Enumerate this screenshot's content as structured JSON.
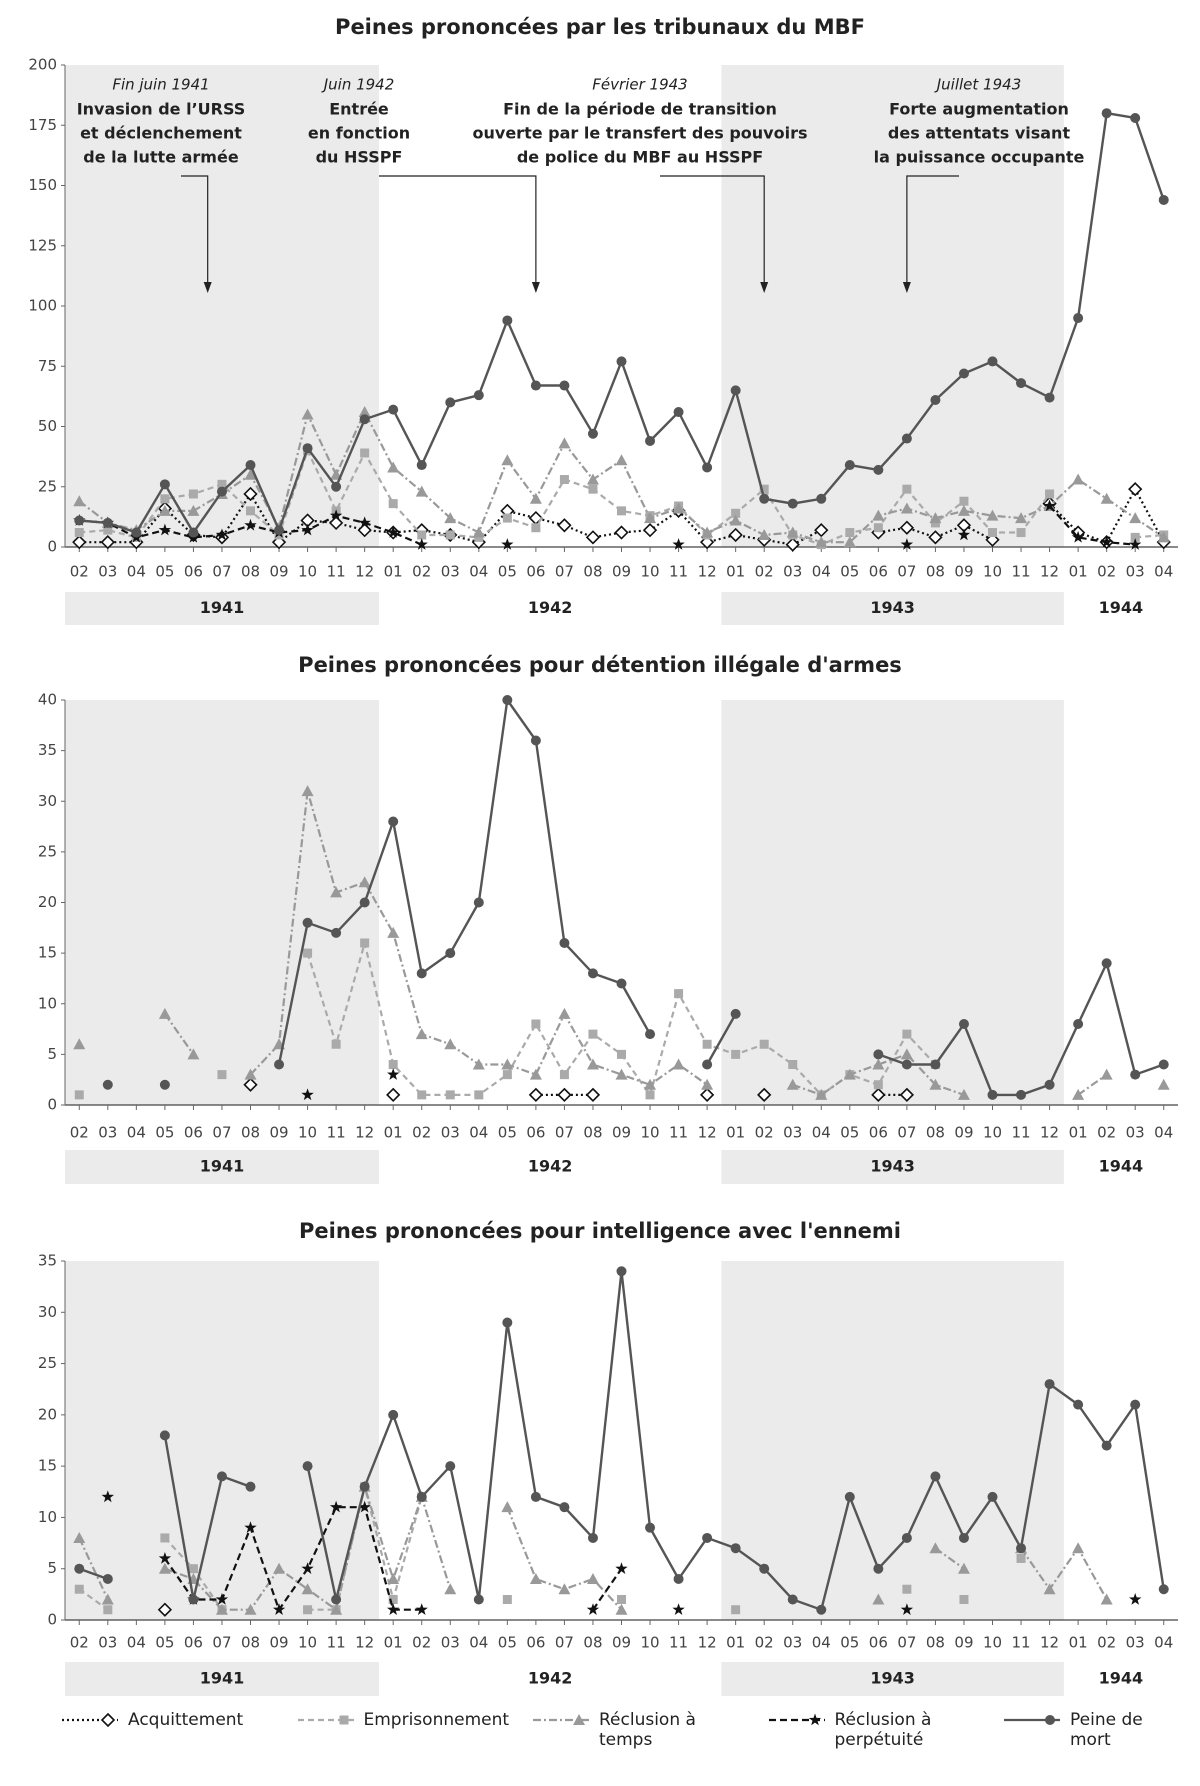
{
  "chart_data": [
    {
      "type": "line",
      "title": "Peines prononcées par les tribunaux du MBF",
      "categories": [
        "02",
        "03",
        "04",
        "05",
        "06",
        "07",
        "08",
        "09",
        "10",
        "11",
        "12",
        "01",
        "02",
        "03",
        "04",
        "05",
        "06",
        "07",
        "08",
        "09",
        "10",
        "11",
        "12",
        "01",
        "02",
        "03",
        "04",
        "05",
        "06",
        "07",
        "08",
        "09",
        "10",
        "11",
        "12",
        "01",
        "02",
        "03",
        "04"
      ],
      "years": [
        "1941",
        "1941",
        "1941",
        "1941",
        "1941",
        "1941",
        "1941",
        "1941",
        "1941",
        "1941",
        "1941",
        "1942",
        "1942",
        "1942",
        "1942",
        "1942",
        "1942",
        "1942",
        "1942",
        "1942",
        "1942",
        "1942",
        "1942",
        "1943",
        "1943",
        "1943",
        "1943",
        "1943",
        "1943",
        "1943",
        "1943",
        "1943",
        "1943",
        "1943",
        "1943",
        "1944",
        "1944",
        "1944",
        "1944"
      ],
      "ylim": [
        0,
        200
      ],
      "yticks": [
        0,
        25,
        50,
        75,
        100,
        125,
        150,
        175,
        200
      ],
      "annotations": [
        {
          "date": "Fin juin 1941",
          "lines": [
            "Invasion de l’URSS",
            "et déclenchement",
            "de la lutte armée"
          ],
          "arrow_index": 4.5
        },
        {
          "date": "Juin 1942",
          "lines": [
            "Entrée",
            "en fonction",
            "du HSSPF"
          ],
          "arrow_index": 16
        },
        {
          "date": "Février 1943",
          "lines": [
            "Fin de la période de transition",
            "ouverte par le transfert des pouvoirs",
            "de police du MBF au HSSPF"
          ],
          "arrow_index": 24
        },
        {
          "date": "Juillet 1943",
          "lines": [
            "Forte augmentation",
            "des attentats visant",
            "la puissance occupante"
          ],
          "arrow_index": 29
        }
      ],
      "series": [
        {
          "name": "Acquittement",
          "color": "#111111",
          "dash": "2,3",
          "marker": "diamond",
          "values": [
            2,
            2,
            2,
            16,
            5,
            4,
            22,
            2,
            11,
            10,
            7,
            6,
            7,
            5,
            2,
            15,
            12,
            9,
            4,
            6,
            7,
            15,
            2,
            5,
            3,
            1,
            7,
            null,
            6,
            8,
            4,
            9,
            3,
            null,
            18,
            6,
            2,
            24,
            2
          ]
        },
        {
          "name": "Emprisonnement",
          "color": "#aaaaaa",
          "dash": "6,4",
          "marker": "square",
          "values": [
            6,
            7,
            4,
            20,
            22,
            26,
            15,
            5,
            40,
            15,
            39,
            18,
            5,
            5,
            4,
            12,
            8,
            28,
            24,
            15,
            13,
            17,
            5,
            14,
            24,
            5,
            1,
            6,
            8,
            24,
            10,
            19,
            6,
            6,
            22,
            null,
            null,
            4,
            5
          ]
        },
        {
          "name": "Réclusion à temps",
          "color": "#999999",
          "dash": "8,3,2,3",
          "marker": "triangle",
          "values": [
            19,
            10,
            7,
            15,
            15,
            22,
            30,
            8,
            55,
            30,
            56,
            33,
            23,
            12,
            6,
            36,
            20,
            43,
            28,
            36,
            12,
            16,
            6,
            11,
            5,
            6,
            2,
            2,
            13,
            16,
            12,
            15,
            13,
            12,
            17,
            28,
            20,
            12,
            4
          ]
        },
        {
          "name": "Réclusion à perpétuité",
          "color": "#111111",
          "dash": "7,4",
          "marker": "star",
          "values": [
            11,
            10,
            4,
            7,
            4,
            5,
            9,
            6,
            7,
            13,
            10,
            6,
            1,
            null,
            null,
            1,
            null,
            null,
            null,
            null,
            null,
            1,
            null,
            null,
            null,
            null,
            null,
            null,
            null,
            1,
            null,
            5,
            null,
            null,
            17,
            4,
            2,
            1,
            null
          ]
        },
        {
          "name": "Peine de mort",
          "color": "#555555",
          "dash": "",
          "marker": "circle",
          "values": [
            11,
            10,
            6,
            26,
            6,
            23,
            34,
            7,
            41,
            25,
            53,
            57,
            34,
            60,
            63,
            94,
            67,
            67,
            47,
            77,
            44,
            56,
            33,
            65,
            20,
            18,
            20,
            34,
            32,
            45,
            61,
            72,
            77,
            68,
            62,
            95,
            180,
            178,
            144
          ]
        }
      ]
    },
    {
      "type": "line",
      "title": "Peines prononcées pour détention illégale d'armes",
      "categories": [
        "02",
        "03",
        "04",
        "05",
        "06",
        "07",
        "08",
        "09",
        "10",
        "11",
        "12",
        "01",
        "02",
        "03",
        "04",
        "05",
        "06",
        "07",
        "08",
        "09",
        "10",
        "11",
        "12",
        "01",
        "02",
        "03",
        "04",
        "05",
        "06",
        "07",
        "08",
        "09",
        "10",
        "11",
        "12",
        "01",
        "02",
        "03",
        "04"
      ],
      "years": [
        "1941",
        "1941",
        "1941",
        "1941",
        "1941",
        "1941",
        "1941",
        "1941",
        "1941",
        "1941",
        "1941",
        "1942",
        "1942",
        "1942",
        "1942",
        "1942",
        "1942",
        "1942",
        "1942",
        "1942",
        "1942",
        "1942",
        "1942",
        "1943",
        "1943",
        "1943",
        "1943",
        "1943",
        "1943",
        "1943",
        "1943",
        "1943",
        "1943",
        "1943",
        "1943",
        "1944",
        "1944",
        "1944",
        "1944"
      ],
      "ylim": [
        0,
        40
      ],
      "yticks": [
        0,
        5,
        10,
        15,
        20,
        25,
        30,
        35,
        40
      ],
      "series": [
        {
          "name": "Acquittement",
          "color": "#111111",
          "dash": "2,3",
          "marker": "diamond",
          "values": [
            null,
            null,
            null,
            null,
            null,
            null,
            2,
            null,
            null,
            null,
            null,
            1,
            null,
            null,
            null,
            null,
            1,
            1,
            1,
            null,
            null,
            null,
            1,
            null,
            1,
            null,
            null,
            null,
            1,
            1,
            null,
            null,
            null,
            null,
            null,
            null,
            null,
            null,
            null
          ]
        },
        {
          "name": "Emprisonnement",
          "color": "#aaaaaa",
          "dash": "6,4",
          "marker": "square",
          "values": [
            1,
            null,
            null,
            null,
            null,
            3,
            null,
            null,
            15,
            6,
            16,
            4,
            1,
            1,
            1,
            3,
            8,
            3,
            7,
            5,
            1,
            11,
            6,
            5,
            6,
            4,
            1,
            3,
            2,
            7,
            4,
            null,
            null,
            null,
            null,
            null,
            null,
            null,
            null
          ]
        },
        {
          "name": "Réclusion à temps",
          "color": "#999999",
          "dash": "8,3,2,3",
          "marker": "triangle",
          "values": [
            6,
            null,
            null,
            9,
            5,
            null,
            3,
            6,
            31,
            21,
            22,
            17,
            7,
            6,
            4,
            4,
            3,
            9,
            4,
            3,
            2,
            4,
            2,
            null,
            null,
            2,
            1,
            3,
            4,
            5,
            2,
            1,
            null,
            null,
            null,
            1,
            3,
            null,
            2
          ]
        },
        {
          "name": "Réclusion à perpétuité",
          "color": "#111111",
          "dash": "7,4",
          "marker": "star",
          "values": [
            null,
            null,
            null,
            null,
            null,
            null,
            null,
            null,
            1,
            null,
            null,
            3,
            null,
            null,
            null,
            null,
            null,
            null,
            null,
            null,
            null,
            null,
            null,
            null,
            null,
            null,
            null,
            null,
            null,
            null,
            null,
            null,
            null,
            null,
            null,
            null,
            null,
            null,
            null
          ]
        },
        {
          "name": "Peine de mort",
          "color": "#555555",
          "dash": "",
          "marker": "circle",
          "values": [
            null,
            2,
            null,
            2,
            null,
            null,
            null,
            4,
            18,
            17,
            20,
            28,
            13,
            15,
            20,
            40,
            36,
            16,
            13,
            12,
            7,
            null,
            4,
            9,
            null,
            null,
            null,
            null,
            5,
            4,
            4,
            8,
            1,
            1,
            2,
            8,
            14,
            3,
            4
          ]
        }
      ]
    },
    {
      "type": "line",
      "title": "Peines prononcées pour intelligence avec l'ennemi",
      "categories": [
        "02",
        "03",
        "04",
        "05",
        "06",
        "07",
        "08",
        "09",
        "10",
        "11",
        "12",
        "01",
        "02",
        "03",
        "04",
        "05",
        "06",
        "07",
        "08",
        "09",
        "10",
        "11",
        "12",
        "01",
        "02",
        "03",
        "04",
        "05",
        "06",
        "07",
        "08",
        "09",
        "10",
        "11",
        "12",
        "01",
        "02",
        "03",
        "04"
      ],
      "years": [
        "1941",
        "1941",
        "1941",
        "1941",
        "1941",
        "1941",
        "1941",
        "1941",
        "1941",
        "1941",
        "1941",
        "1942",
        "1942",
        "1942",
        "1942",
        "1942",
        "1942",
        "1942",
        "1942",
        "1942",
        "1942",
        "1942",
        "1942",
        "1943",
        "1943",
        "1943",
        "1943",
        "1943",
        "1943",
        "1943",
        "1943",
        "1943",
        "1943",
        "1943",
        "1943",
        "1944",
        "1944",
        "1944",
        "1944"
      ],
      "ylim": [
        0,
        35
      ],
      "yticks": [
        0,
        5,
        10,
        15,
        20,
        25,
        30,
        35
      ],
      "series": [
        {
          "name": "Acquittement",
          "color": "#111111",
          "dash": "2,3",
          "marker": "diamond",
          "values": [
            null,
            null,
            null,
            1,
            null,
            null,
            null,
            null,
            null,
            null,
            null,
            null,
            null,
            null,
            null,
            null,
            null,
            null,
            null,
            null,
            null,
            null,
            null,
            null,
            null,
            null,
            null,
            null,
            null,
            null,
            null,
            null,
            null,
            null,
            null,
            null,
            null,
            null,
            null
          ]
        },
        {
          "name": "Emprisonnement",
          "color": "#aaaaaa",
          "dash": "6,4",
          "marker": "square",
          "values": [
            3,
            1,
            null,
            8,
            5,
            1,
            null,
            null,
            1,
            1,
            13,
            2,
            12,
            null,
            null,
            2,
            null,
            null,
            null,
            2,
            null,
            null,
            null,
            1,
            null,
            null,
            null,
            null,
            null,
            3,
            null,
            2,
            null,
            6,
            null,
            null,
            null,
            null,
            null
          ]
        },
        {
          "name": "Réclusion à temps",
          "color": "#999999",
          "dash": "8,3,2,3",
          "marker": "triangle",
          "values": [
            8,
            2,
            null,
            5,
            4,
            1,
            1,
            5,
            3,
            1,
            13,
            4,
            12,
            3,
            null,
            11,
            4,
            3,
            4,
            1,
            null,
            null,
            null,
            null,
            null,
            null,
            null,
            null,
            2,
            null,
            7,
            5,
            null,
            7,
            3,
            7,
            2,
            null,
            null
          ]
        },
        {
          "name": "Réclusion à perpétuité",
          "color": "#111111",
          "dash": "7,4",
          "marker": "star",
          "values": [
            null,
            12,
            null,
            6,
            2,
            2,
            9,
            1,
            5,
            11,
            11,
            1,
            1,
            null,
            null,
            null,
            null,
            null,
            1,
            5,
            null,
            1,
            null,
            null,
            null,
            null,
            null,
            null,
            null,
            1,
            null,
            null,
            null,
            null,
            null,
            null,
            null,
            2,
            null
          ]
        },
        {
          "name": "Peine de mort",
          "color": "#555555",
          "dash": "",
          "marker": "circle",
          "values": [
            5,
            4,
            null,
            18,
            2,
            14,
            13,
            null,
            15,
            2,
            13,
            20,
            12,
            15,
            2,
            29,
            12,
            11,
            8,
            34,
            9,
            4,
            8,
            7,
            5,
            2,
            1,
            12,
            5,
            8,
            14,
            8,
            12,
            7,
            23,
            21,
            17,
            21,
            3
          ]
        }
      ]
    }
  ]
}
